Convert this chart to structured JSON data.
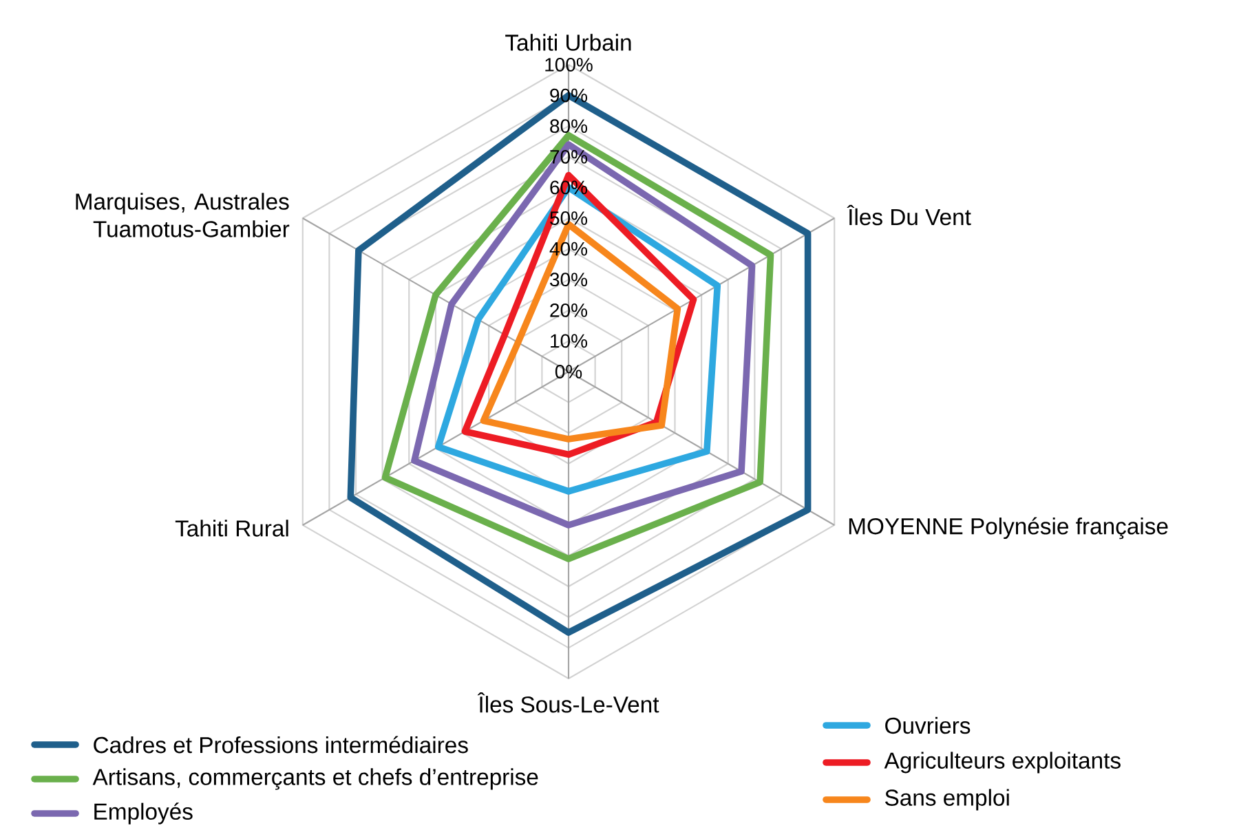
{
  "chart_data": {
    "type": "radar",
    "categories": [
      "Tahiti Urbain",
      "Îles Du Vent",
      "MOYENNE Polynésie française",
      "Îles Sous-Le-Vent",
      "Tahiti Rural",
      "Marquises, Australes Tuamotus-Gambier"
    ],
    "ylim": [
      0,
      100
    ],
    "yticks": [
      {
        "value": 0,
        "label": "0%"
      },
      {
        "value": 10,
        "label": "10%"
      },
      {
        "value": 20,
        "label": "20%"
      },
      {
        "value": 30,
        "label": "30%"
      },
      {
        "value": 40,
        "label": "40%"
      },
      {
        "value": 50,
        "label": "50%"
      },
      {
        "value": 60,
        "label": "60%"
      },
      {
        "value": 70,
        "label": "70%"
      },
      {
        "value": 80,
        "label": "80%"
      },
      {
        "value": 90,
        "label": "90%"
      },
      {
        "value": 100,
        "label": "100%"
      }
    ],
    "grid": true,
    "legend": "bottom",
    "series": [
      {
        "name": "Cadres et Professions intermédiaires",
        "color": "#1f5f8b",
        "values": [
          90,
          90,
          90,
          85,
          82,
          79
        ]
      },
      {
        "name": "Artisans, commerçants et chefs d’entreprise",
        "color": "#6ab04c",
        "values": [
          77,
          76,
          72,
          61,
          69,
          50
        ]
      },
      {
        "name": "Employés",
        "color": "#7b68b0",
        "values": [
          74,
          69,
          65,
          50,
          58,
          44
        ]
      },
      {
        "name": "Ouvriers",
        "color": "#2ea8e0",
        "values": [
          60,
          56,
          52,
          39,
          49,
          34
        ]
      },
      {
        "name": "Agriculteurs exploitants",
        "color": "#ed1c24",
        "values": [
          64,
          47,
          33,
          27,
          39,
          24
        ]
      },
      {
        "name": "Sans emploi",
        "color": "#f7861c",
        "values": [
          48,
          41,
          35,
          22,
          32,
          19
        ]
      }
    ]
  }
}
